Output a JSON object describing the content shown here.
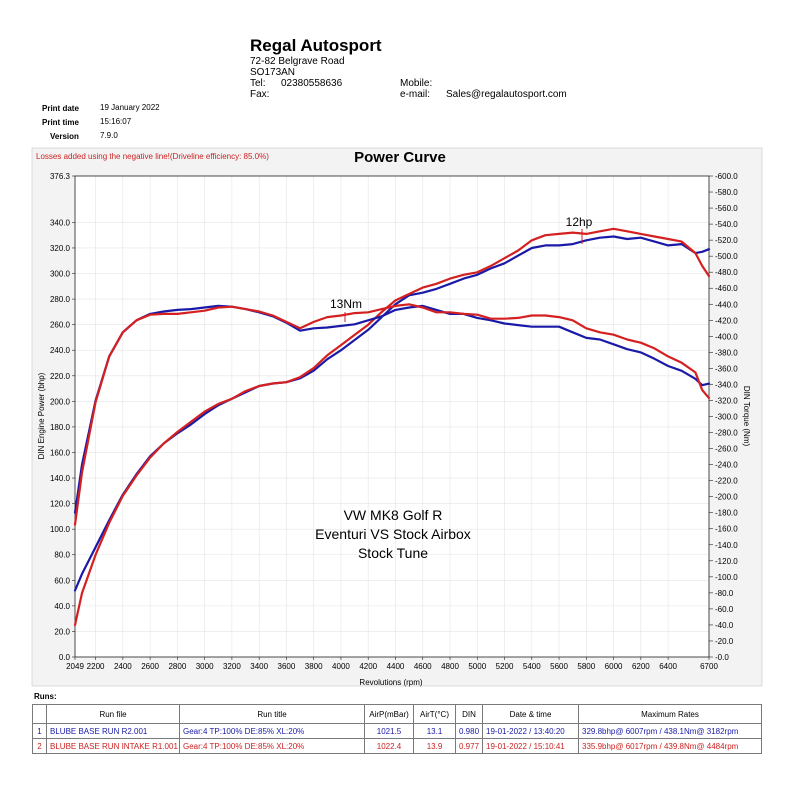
{
  "header": {
    "company": "Regal Autosport",
    "address_line1": "72-82 Belgrave Road",
    "address_line2": "SO173AN",
    "tel_label": "Tel:",
    "tel": "02380558636",
    "fax_label": "Fax:",
    "mobile_label": "Mobile:",
    "email_label": "e-mail:",
    "email": "Sales@regalautosport.com",
    "print_date_label": "Print date",
    "print_date": "19 January 2022",
    "print_time_label": "Print time",
    "print_time": "15:16:07",
    "version_label": "Version",
    "version": "7.9.0"
  },
  "losses_note": "Losses added using the negative line!(Driveline efficiency: 85.0%)",
  "chart_data": {
    "type": "line",
    "title": "Power Curve",
    "xlabel": "Revolutions (rpm)",
    "ylabel": "DIN Engine Power (bhp)",
    "y2label": "DIN Torque (Nm)",
    "xlim": [
      2049,
      6700
    ],
    "ylim": [
      0,
      376.3
    ],
    "y2lim": [
      0,
      600
    ],
    "x_ticks": [
      "2049",
      "2200",
      "2400",
      "2600",
      "2800",
      "3000",
      "3200",
      "3400",
      "3600",
      "3800",
      "4000",
      "4200",
      "4400",
      "4600",
      "4800",
      "5000",
      "5200",
      "5400",
      "5600",
      "5800",
      "6000",
      "6200",
      "6400",
      "6700"
    ],
    "y_ticks": [
      "0.0",
      "20.0",
      "40.0",
      "60.0",
      "80.0",
      "100.0",
      "120.0",
      "140.0",
      "160.0",
      "180.0",
      "200.0",
      "220.0",
      "240.0",
      "260.0",
      "280.0",
      "300.0",
      "320.0",
      "340.0",
      "376.3"
    ],
    "y2_ticks": [
      "0.0",
      "20.0",
      "40.0",
      "60.0",
      "80.0",
      "100.0",
      "120.0",
      "140.0",
      "160.0",
      "180.0",
      "200.0",
      "220.0",
      "240.0",
      "260.0",
      "280.0",
      "300.0",
      "320.0",
      "340.0",
      "360.0",
      "380.0",
      "400.0",
      "420.0",
      "440.0",
      "460.0",
      "480.0",
      "500.0",
      "520.0",
      "540.0",
      "560.0",
      "580.0",
      "600.0"
    ],
    "annotations": [
      "13Nm",
      "12hp",
      "VW MK8 Golf R",
      "Eventuri VS Stock Airbox",
      "Stock Tune"
    ],
    "series": [
      {
        "name": "BLUBE BASE RUN R2.001 power",
        "axis": "power",
        "color": "#1a1aa8",
        "x": [
          2049,
          2100,
          2200,
          2300,
          2400,
          2500,
          2600,
          2700,
          2800,
          2900,
          3000,
          3100,
          3200,
          3300,
          3400,
          3500,
          3600,
          3700,
          3800,
          3900,
          4000,
          4100,
          4200,
          4300,
          4400,
          4500,
          4600,
          4700,
          4800,
          4900,
          5000,
          5100,
          5200,
          5300,
          5400,
          5500,
          5600,
          5700,
          5800,
          5900,
          6000,
          6100,
          6200,
          6300,
          6400,
          6500,
          6600,
          6650,
          6700
        ],
        "values": [
          52,
          65,
          86,
          107,
          127,
          143,
          157,
          167,
          175,
          182,
          190,
          197,
          202,
          207,
          212,
          214,
          215,
          218,
          224,
          233,
          240,
          248,
          256,
          266,
          276,
          283,
          285,
          288,
          292,
          296,
          299,
          304,
          308,
          314,
          320,
          322,
          322,
          323,
          326,
          328,
          329,
          327,
          328,
          325,
          322,
          323,
          316,
          317,
          319
        ]
      },
      {
        "name": "BLUBE BASE RUN INTAKE R1.001 power",
        "axis": "power",
        "color": "#d42020",
        "x": [
          2049,
          2100,
          2200,
          2300,
          2400,
          2500,
          2600,
          2700,
          2800,
          2900,
          3000,
          3100,
          3200,
          3300,
          3400,
          3500,
          3600,
          3700,
          3800,
          3900,
          4000,
          4100,
          4200,
          4300,
          4400,
          4500,
          4600,
          4700,
          4800,
          4900,
          5000,
          5100,
          5200,
          5300,
          5400,
          5500,
          5600,
          5700,
          5800,
          5900,
          6000,
          6100,
          6200,
          6300,
          6400,
          6500,
          6600,
          6650,
          6700
        ],
        "values": [
          25,
          50,
          80,
          105,
          126,
          142,
          156,
          167,
          176,
          184,
          192,
          198,
          202,
          208,
          212,
          214,
          215,
          219,
          226,
          236,
          244,
          252,
          260,
          270,
          279,
          284,
          289,
          292,
          296,
          299,
          301,
          306,
          312,
          318,
          326,
          330,
          331,
          332,
          331,
          333,
          335,
          333,
          331,
          329,
          327,
          325,
          316,
          306,
          298
        ]
      },
      {
        "name": "BLUBE BASE RUN R2.001 torque",
        "axis": "torque",
        "color": "#1a1aa8",
        "x": [
          2049,
          2100,
          2200,
          2300,
          2400,
          2500,
          2600,
          2700,
          2800,
          2900,
          3000,
          3100,
          3200,
          3300,
          3400,
          3500,
          3600,
          3700,
          3800,
          3900,
          4000,
          4100,
          4200,
          4300,
          4400,
          4500,
          4600,
          4700,
          4800,
          4900,
          5000,
          5100,
          5200,
          5300,
          5400,
          5500,
          5600,
          5700,
          5800,
          5900,
          6000,
          6100,
          6200,
          6300,
          6400,
          6500,
          6600,
          6650,
          6700
        ],
        "values": [
          180,
          240,
          320,
          375,
          405,
          420,
          428,
          431,
          433,
          434,
          436,
          438,
          437,
          434,
          430,
          425,
          417,
          407,
          410,
          411,
          413,
          415,
          420,
          425,
          433,
          436,
          438,
          433,
          428,
          428,
          423,
          420,
          416,
          414,
          412,
          412,
          412,
          405,
          398,
          396,
          390,
          384,
          380,
          372,
          363,
          357,
          347,
          339,
          341
        ]
      },
      {
        "name": "BLUBE BASE RUN INTAKE R1.001 torque",
        "axis": "torque",
        "color": "#d42020",
        "x": [
          2049,
          2100,
          2200,
          2300,
          2400,
          2500,
          2600,
          2700,
          2800,
          2900,
          3000,
          3100,
          3200,
          3300,
          3400,
          3500,
          3600,
          3700,
          3800,
          3900,
          4000,
          4100,
          4200,
          4300,
          4400,
          4500,
          4600,
          4700,
          4800,
          4900,
          5000,
          5100,
          5200,
          5300,
          5400,
          5500,
          5600,
          5700,
          5800,
          5900,
          6000,
          6100,
          6200,
          6300,
          6400,
          6500,
          6600,
          6650,
          6700
        ],
        "values": [
          165,
          230,
          318,
          375,
          405,
          420,
          427,
          428,
          428,
          430,
          432,
          436,
          437,
          434,
          431,
          426,
          418,
          410,
          418,
          424,
          426,
          429,
          430,
          434,
          438,
          440,
          436,
          430,
          430,
          428,
          427,
          422,
          422,
          423,
          426,
          426,
          424,
          420,
          410,
          405,
          402,
          396,
          392,
          385,
          375,
          367,
          355,
          333,
          323
        ]
      }
    ]
  },
  "runs_table": {
    "label": "Runs:",
    "headers": [
      "",
      "Run file",
      "Run title",
      "AirP(mBar)",
      "AirT(°C)",
      "DIN",
      "Date & time",
      "Maximum Rates"
    ],
    "rows": [
      {
        "num": "1",
        "file": "BLUBE BASE RUN R2.001",
        "title": "Gear:4 TP:100% DE:85% XL:20%",
        "airp": "1021.5",
        "airt": "13.1",
        "din": "0.980",
        "datetime": "19-01-2022 / 13:40:20",
        "max": "329.8bhp@ 6007rpm / 438.1Nm@ 3182rpm"
      },
      {
        "num": "2",
        "file": "BLUBE BASE RUN INTAKE R1.001",
        "title": "Gear:4 TP:100% DE:85% XL:20%",
        "airp": "1022.4",
        "airt": "13.9",
        "din": "0.977",
        "datetime": "19-01-2022 / 15:10:41",
        "max": "335.9bhp@ 6017rpm / 439.8Nm@ 4484rpm"
      }
    ]
  }
}
